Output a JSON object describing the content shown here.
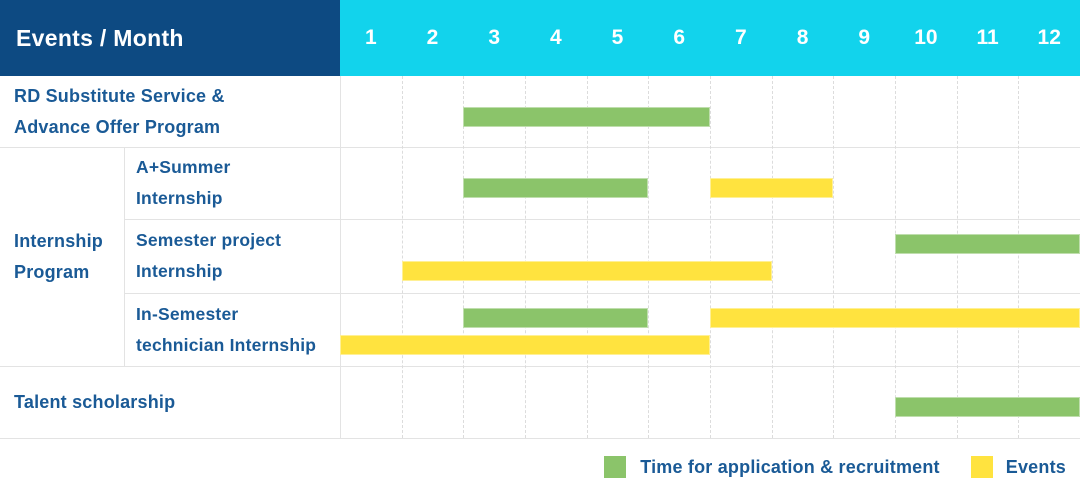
{
  "header": {
    "title": "Events / Month",
    "months": [
      "1",
      "2",
      "3",
      "4",
      "5",
      "6",
      "7",
      "8",
      "9",
      "10",
      "11",
      "12"
    ]
  },
  "labels": {
    "internship_group": "Internship\nProgram"
  },
  "colors": {
    "header_bg": "#0d4a82",
    "months_bg": "#12d3ec",
    "header_text": "#ffffff",
    "label_text": "#1a5a96",
    "recruitment_bar": "#8bc46a",
    "event_bar": "#ffe33f",
    "gridline": "#e3e3e3"
  },
  "chart_data": {
    "type": "gantt",
    "x_unit": "month",
    "x_range": [
      1,
      12
    ],
    "grid": "dashed-vertical-month-lines",
    "rows": [
      {
        "group": "",
        "label": "RD Substitute Service &\nAdvance Offer Program",
        "bars": [
          {
            "kind": "recruitment",
            "start_month": 3,
            "end_month": 6,
            "track": "single"
          }
        ]
      },
      {
        "group": "Internship Program",
        "label": "A+Summer\nInternship",
        "bars": [
          {
            "kind": "recruitment",
            "start_month": 3,
            "end_month": 5,
            "track": "single"
          },
          {
            "kind": "event",
            "start_month": 7,
            "end_month": 8,
            "track": "single"
          }
        ]
      },
      {
        "group": "Internship Program",
        "label": "Semester project\nInternship",
        "bars": [
          {
            "kind": "recruitment",
            "start_month": 10,
            "end_month": 12,
            "track": "top"
          },
          {
            "kind": "event",
            "start_month": 2,
            "end_month": 7,
            "track": "bottom"
          }
        ]
      },
      {
        "group": "Internship Program",
        "label": "In-Semester\ntechnician Internship",
        "bars": [
          {
            "kind": "recruitment",
            "start_month": 3,
            "end_month": 5,
            "track": "top"
          },
          {
            "kind": "event",
            "start_month": 7,
            "end_month": 12,
            "track": "top"
          },
          {
            "kind": "event",
            "start_month": 1,
            "end_month": 6,
            "track": "bottom"
          }
        ]
      },
      {
        "group": "",
        "label": "Talent scholarship",
        "bars": [
          {
            "kind": "recruitment",
            "start_month": 10,
            "end_month": 12,
            "track": "single"
          }
        ]
      }
    ],
    "legend": [
      {
        "kind": "recruitment",
        "label": "Time for application & recruitment",
        "color": "#8bc46a"
      },
      {
        "kind": "event",
        "label": "Events",
        "color": "#ffe33f"
      }
    ]
  }
}
